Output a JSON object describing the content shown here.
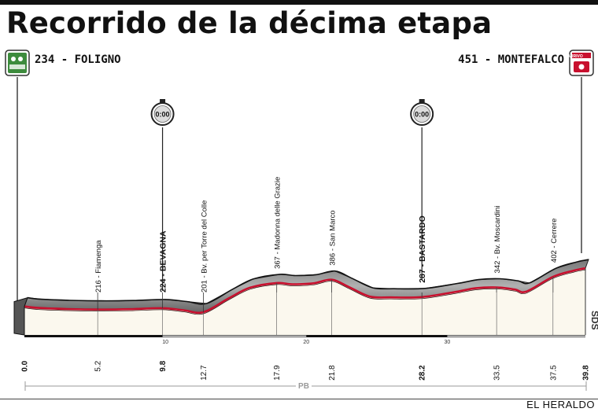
{
  "title": "Recorrido de la décima etapa",
  "credit": "EL HERALDO",
  "start": {
    "label": "234 - FOLIGNO",
    "icon": "start-flag-icon"
  },
  "finish": {
    "label": "451 - MONTEFALCO",
    "icon": "finish-flag-icon",
    "badge": "ARRIVO"
  },
  "timer_label": "0:00",
  "distance_total_marker": "PB",
  "side_tag": "SDS",
  "chart_data": {
    "type": "area",
    "x_unit": "km",
    "points": [
      {
        "km": 0.0,
        "alt": 234
      },
      {
        "km": 1.0,
        "alt": 225
      },
      {
        "km": 3.0,
        "alt": 219
      },
      {
        "km": 5.2,
        "alt": 216
      },
      {
        "km": 7.5,
        "alt": 218
      },
      {
        "km": 9.8,
        "alt": 224
      },
      {
        "km": 11.3,
        "alt": 212
      },
      {
        "km": 12.7,
        "alt": 201
      },
      {
        "km": 14.5,
        "alt": 280
      },
      {
        "km": 16.0,
        "alt": 340
      },
      {
        "km": 17.9,
        "alt": 367
      },
      {
        "km": 19.0,
        "alt": 360
      },
      {
        "km": 20.5,
        "alt": 365
      },
      {
        "km": 21.8,
        "alt": 386
      },
      {
        "km": 23.0,
        "alt": 345
      },
      {
        "km": 24.5,
        "alt": 290
      },
      {
        "km": 26.0,
        "alt": 285
      },
      {
        "km": 28.2,
        "alt": 287
      },
      {
        "km": 30.5,
        "alt": 315
      },
      {
        "km": 32.0,
        "alt": 337
      },
      {
        "km": 33.5,
        "alt": 342
      },
      {
        "km": 34.8,
        "alt": 330
      },
      {
        "km": 35.6,
        "alt": 318
      },
      {
        "km": 37.5,
        "alt": 402
      },
      {
        "km": 39.0,
        "alt": 438
      },
      {
        "km": 39.8,
        "alt": 451
      }
    ],
    "annotations": [
      {
        "km": 5.2,
        "text": "216 - Fiamenga",
        "bold": false
      },
      {
        "km": 9.8,
        "text": "224 - BEVAGNA",
        "bold": true
      },
      {
        "km": 12.7,
        "text": "201 - Bv. per Torre del Colle",
        "bold": false
      },
      {
        "km": 17.9,
        "text": "367 - Madonna delle Grazie",
        "bold": false
      },
      {
        "km": 21.8,
        "text": "386 - San Marco",
        "bold": false
      },
      {
        "km": 28.2,
        "text": "287 - BASTARDO",
        "bold": true
      },
      {
        "km": 33.5,
        "text": "342 - Bv. Moscardini",
        "bold": false
      },
      {
        "km": 37.5,
        "text": "402 - Cerrere",
        "bold": false
      }
    ],
    "time_checks_km": [
      9.8,
      28.2
    ],
    "x_ticks": [
      {
        "km": 0.0,
        "label": "0.0",
        "bold": true
      },
      {
        "km": 5.2,
        "label": "5.2",
        "bold": false
      },
      {
        "km": 9.8,
        "label": "9.8",
        "bold": true
      },
      {
        "km": 12.7,
        "label": "12.7",
        "bold": false
      },
      {
        "km": 17.9,
        "label": "17.9",
        "bold": false
      },
      {
        "km": 21.8,
        "label": "21.8",
        "bold": false
      },
      {
        "km": 28.2,
        "label": "28.2",
        "bold": true
      },
      {
        "km": 33.5,
        "label": "33.5",
        "bold": false
      },
      {
        "km": 37.5,
        "label": "37.5",
        "bold": false
      },
      {
        "km": 39.8,
        "label": "39.8",
        "bold": true
      }
    ],
    "minor_ticks": [
      {
        "km": 10,
        "label": "10"
      },
      {
        "km": 20,
        "label": "20"
      },
      {
        "km": 30,
        "label": "30"
      }
    ]
  },
  "colors": {
    "road": "#9a9a9a",
    "edge": "#c8102e",
    "fill": "#fbf8ee",
    "ink": "#111111",
    "timer": "#dcdcdc"
  }
}
